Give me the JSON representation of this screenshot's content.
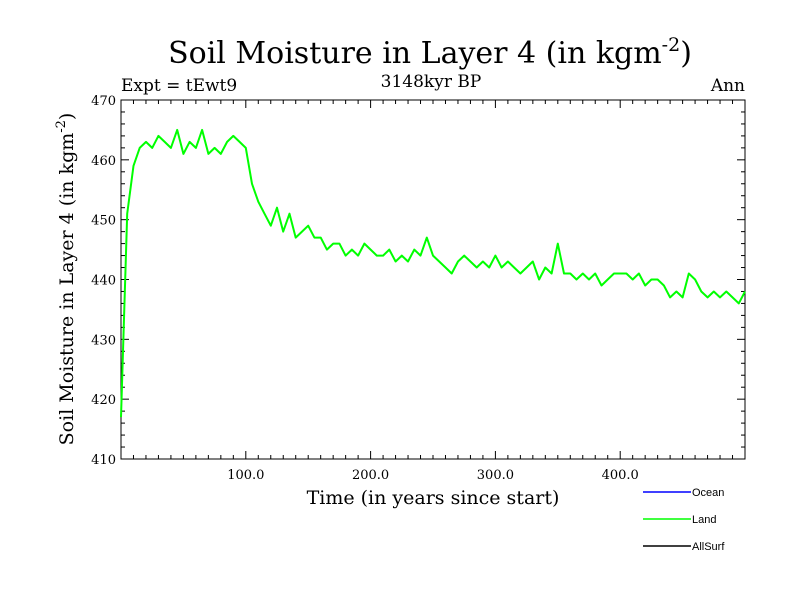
{
  "chart_data": {
    "type": "line",
    "title_main": "Soil Moisture in Layer 4 (in kgm",
    "title_sup": "-2",
    "title_close": ")",
    "subtitle_left": "Expt = tEwt9",
    "subtitle_center": "3148kyr BP",
    "subtitle_right": "Ann",
    "xlabel": "Time (in years since start)",
    "ylabel_main": "Soil Moisture in Layer 4 (in kgm",
    "ylabel_sup": "-2",
    "ylabel_close": ")",
    "xlim": [
      0,
      500
    ],
    "ylim": [
      410,
      470
    ],
    "xticks": [
      100,
      200,
      300,
      400
    ],
    "xtick_labels": [
      "100.0",
      "200.0",
      "300.0",
      "400.0"
    ],
    "yticks": [
      410,
      420,
      430,
      440,
      450,
      460,
      470
    ],
    "ytick_labels": [
      "410",
      "420",
      "430",
      "440",
      "450",
      "460",
      "470"
    ],
    "grid": false,
    "legend_position": "bottom-right, below plot",
    "series": [
      {
        "name": "Ocean",
        "color": "#0000ff",
        "values": []
      },
      {
        "name": "Land",
        "color": "#00ff00",
        "x_step": 5,
        "x": [
          0,
          5,
          10,
          15,
          20,
          25,
          30,
          35,
          40,
          45,
          50,
          55,
          60,
          65,
          70,
          75,
          80,
          85,
          90,
          95,
          100,
          105,
          110,
          115,
          120,
          125,
          130,
          135,
          140,
          145,
          150,
          155,
          160,
          165,
          170,
          175,
          180,
          185,
          190,
          195,
          200,
          205,
          210,
          215,
          220,
          225,
          230,
          235,
          240,
          245,
          250,
          255,
          260,
          265,
          270,
          275,
          280,
          285,
          290,
          295,
          300,
          305,
          310,
          315,
          320,
          325,
          330,
          335,
          340,
          345,
          350,
          355,
          360,
          365,
          370,
          375,
          380,
          385,
          390,
          395,
          400,
          405,
          410,
          415,
          420,
          425,
          430,
          435,
          440,
          445,
          450,
          455,
          460,
          465,
          470,
          475,
          480,
          485,
          490,
          495,
          500
        ],
        "values": [
          417,
          451,
          459,
          462,
          463,
          462,
          464,
          463,
          462,
          465,
          461,
          463,
          462,
          465,
          461,
          462,
          461,
          463,
          464,
          463,
          462,
          456,
          453,
          451,
          449,
          452,
          448,
          451,
          447,
          448,
          449,
          447,
          447,
          445,
          446,
          446,
          444,
          445,
          444,
          446,
          445,
          444,
          444,
          445,
          443,
          444,
          443,
          445,
          444,
          447,
          444,
          443,
          442,
          441,
          443,
          444,
          443,
          442,
          443,
          442,
          444,
          442,
          443,
          442,
          441,
          442,
          443,
          440,
          442,
          441,
          446,
          441,
          441,
          440,
          441,
          440,
          441,
          439,
          440,
          441,
          441,
          441,
          440,
          441,
          439,
          440,
          440,
          439,
          437,
          438,
          437,
          441,
          440,
          438,
          437,
          438,
          437,
          438,
          437,
          436,
          438
        ]
      },
      {
        "name": "AllSurf",
        "color": "#000000",
        "values": []
      }
    ]
  }
}
